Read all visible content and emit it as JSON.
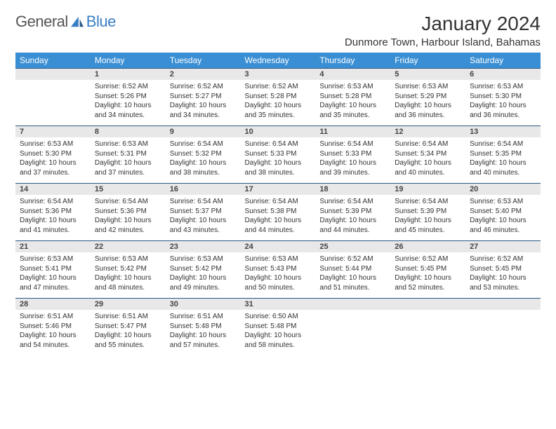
{
  "logo": {
    "general": "General",
    "blue": "Blue"
  },
  "title": "January 2024",
  "location": "Dunmore Town, Harbour Island, Bahamas",
  "colors": {
    "header_bg": "#3a8fd4",
    "header_text": "#ffffff",
    "daynum_bg": "#e8e8e8",
    "border": "#2c5a8a",
    "logo_blue": "#3a7fc4"
  },
  "day_headers": [
    "Sunday",
    "Monday",
    "Tuesday",
    "Wednesday",
    "Thursday",
    "Friday",
    "Saturday"
  ],
  "weeks": [
    {
      "nums": [
        "",
        "1",
        "2",
        "3",
        "4",
        "5",
        "6"
      ],
      "cells": [
        {
          "sr": "",
          "ss": "",
          "dl": ""
        },
        {
          "sr": "Sunrise: 6:52 AM",
          "ss": "Sunset: 5:26 PM",
          "dl": "Daylight: 10 hours and 34 minutes."
        },
        {
          "sr": "Sunrise: 6:52 AM",
          "ss": "Sunset: 5:27 PM",
          "dl": "Daylight: 10 hours and 34 minutes."
        },
        {
          "sr": "Sunrise: 6:52 AM",
          "ss": "Sunset: 5:28 PM",
          "dl": "Daylight: 10 hours and 35 minutes."
        },
        {
          "sr": "Sunrise: 6:53 AM",
          "ss": "Sunset: 5:28 PM",
          "dl": "Daylight: 10 hours and 35 minutes."
        },
        {
          "sr": "Sunrise: 6:53 AM",
          "ss": "Sunset: 5:29 PM",
          "dl": "Daylight: 10 hours and 36 minutes."
        },
        {
          "sr": "Sunrise: 6:53 AM",
          "ss": "Sunset: 5:30 PM",
          "dl": "Daylight: 10 hours and 36 minutes."
        }
      ]
    },
    {
      "nums": [
        "7",
        "8",
        "9",
        "10",
        "11",
        "12",
        "13"
      ],
      "cells": [
        {
          "sr": "Sunrise: 6:53 AM",
          "ss": "Sunset: 5:30 PM",
          "dl": "Daylight: 10 hours and 37 minutes."
        },
        {
          "sr": "Sunrise: 6:53 AM",
          "ss": "Sunset: 5:31 PM",
          "dl": "Daylight: 10 hours and 37 minutes."
        },
        {
          "sr": "Sunrise: 6:54 AM",
          "ss": "Sunset: 5:32 PM",
          "dl": "Daylight: 10 hours and 38 minutes."
        },
        {
          "sr": "Sunrise: 6:54 AM",
          "ss": "Sunset: 5:33 PM",
          "dl": "Daylight: 10 hours and 38 minutes."
        },
        {
          "sr": "Sunrise: 6:54 AM",
          "ss": "Sunset: 5:33 PM",
          "dl": "Daylight: 10 hours and 39 minutes."
        },
        {
          "sr": "Sunrise: 6:54 AM",
          "ss": "Sunset: 5:34 PM",
          "dl": "Daylight: 10 hours and 40 minutes."
        },
        {
          "sr": "Sunrise: 6:54 AM",
          "ss": "Sunset: 5:35 PM",
          "dl": "Daylight: 10 hours and 40 minutes."
        }
      ]
    },
    {
      "nums": [
        "14",
        "15",
        "16",
        "17",
        "18",
        "19",
        "20"
      ],
      "cells": [
        {
          "sr": "Sunrise: 6:54 AM",
          "ss": "Sunset: 5:36 PM",
          "dl": "Daylight: 10 hours and 41 minutes."
        },
        {
          "sr": "Sunrise: 6:54 AM",
          "ss": "Sunset: 5:36 PM",
          "dl": "Daylight: 10 hours and 42 minutes."
        },
        {
          "sr": "Sunrise: 6:54 AM",
          "ss": "Sunset: 5:37 PM",
          "dl": "Daylight: 10 hours and 43 minutes."
        },
        {
          "sr": "Sunrise: 6:54 AM",
          "ss": "Sunset: 5:38 PM",
          "dl": "Daylight: 10 hours and 44 minutes."
        },
        {
          "sr": "Sunrise: 6:54 AM",
          "ss": "Sunset: 5:39 PM",
          "dl": "Daylight: 10 hours and 44 minutes."
        },
        {
          "sr": "Sunrise: 6:54 AM",
          "ss": "Sunset: 5:39 PM",
          "dl": "Daylight: 10 hours and 45 minutes."
        },
        {
          "sr": "Sunrise: 6:53 AM",
          "ss": "Sunset: 5:40 PM",
          "dl": "Daylight: 10 hours and 46 minutes."
        }
      ]
    },
    {
      "nums": [
        "21",
        "22",
        "23",
        "24",
        "25",
        "26",
        "27"
      ],
      "cells": [
        {
          "sr": "Sunrise: 6:53 AM",
          "ss": "Sunset: 5:41 PM",
          "dl": "Daylight: 10 hours and 47 minutes."
        },
        {
          "sr": "Sunrise: 6:53 AM",
          "ss": "Sunset: 5:42 PM",
          "dl": "Daylight: 10 hours and 48 minutes."
        },
        {
          "sr": "Sunrise: 6:53 AM",
          "ss": "Sunset: 5:42 PM",
          "dl": "Daylight: 10 hours and 49 minutes."
        },
        {
          "sr": "Sunrise: 6:53 AM",
          "ss": "Sunset: 5:43 PM",
          "dl": "Daylight: 10 hours and 50 minutes."
        },
        {
          "sr": "Sunrise: 6:52 AM",
          "ss": "Sunset: 5:44 PM",
          "dl": "Daylight: 10 hours and 51 minutes."
        },
        {
          "sr": "Sunrise: 6:52 AM",
          "ss": "Sunset: 5:45 PM",
          "dl": "Daylight: 10 hours and 52 minutes."
        },
        {
          "sr": "Sunrise: 6:52 AM",
          "ss": "Sunset: 5:45 PM",
          "dl": "Daylight: 10 hours and 53 minutes."
        }
      ]
    },
    {
      "nums": [
        "28",
        "29",
        "30",
        "31",
        "",
        "",
        ""
      ],
      "cells": [
        {
          "sr": "Sunrise: 6:51 AM",
          "ss": "Sunset: 5:46 PM",
          "dl": "Daylight: 10 hours and 54 minutes."
        },
        {
          "sr": "Sunrise: 6:51 AM",
          "ss": "Sunset: 5:47 PM",
          "dl": "Daylight: 10 hours and 55 minutes."
        },
        {
          "sr": "Sunrise: 6:51 AM",
          "ss": "Sunset: 5:48 PM",
          "dl": "Daylight: 10 hours and 57 minutes."
        },
        {
          "sr": "Sunrise: 6:50 AM",
          "ss": "Sunset: 5:48 PM",
          "dl": "Daylight: 10 hours and 58 minutes."
        },
        {
          "sr": "",
          "ss": "",
          "dl": ""
        },
        {
          "sr": "",
          "ss": "",
          "dl": ""
        },
        {
          "sr": "",
          "ss": "",
          "dl": ""
        }
      ]
    }
  ]
}
